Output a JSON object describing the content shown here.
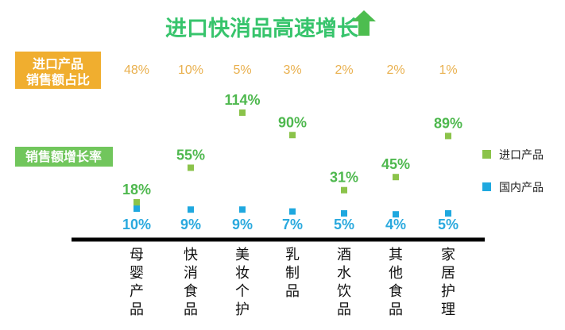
{
  "chart_data": {
    "type": "scatter",
    "title": "进口快消品高速增长",
    "share_label_lines": [
      "进口产品",
      "销售额占比"
    ],
    "growth_label": "销售额增长率",
    "categories": [
      "母婴产品",
      "快消食品",
      "美妆个护",
      "乳制品",
      "酒水饮品",
      "其他食品",
      "家居护理"
    ],
    "share_values": [
      "48%",
      "10%",
      "5%",
      "3%",
      "2%",
      "2%",
      "1%"
    ],
    "series": [
      {
        "name": "进口产品",
        "values": [
          18,
          55,
          114,
          90,
          31,
          45,
          89
        ],
        "color": "#8bc34a"
      },
      {
        "name": "国内产品",
        "values": [
          10,
          9,
          9,
          7,
          5,
          4,
          5
        ],
        "color": "#1fa8df"
      }
    ],
    "unit_suffix": "%",
    "colors": {
      "title": "#37c46c",
      "title_arrow": "#4dbd4f",
      "share_box": "#f0ae2f",
      "growth_box": "#71c65c",
      "share_text": "#e9b04e",
      "import_label": "#4eb84e",
      "domestic_label": "#2aa9de",
      "axis": "#000000"
    }
  }
}
